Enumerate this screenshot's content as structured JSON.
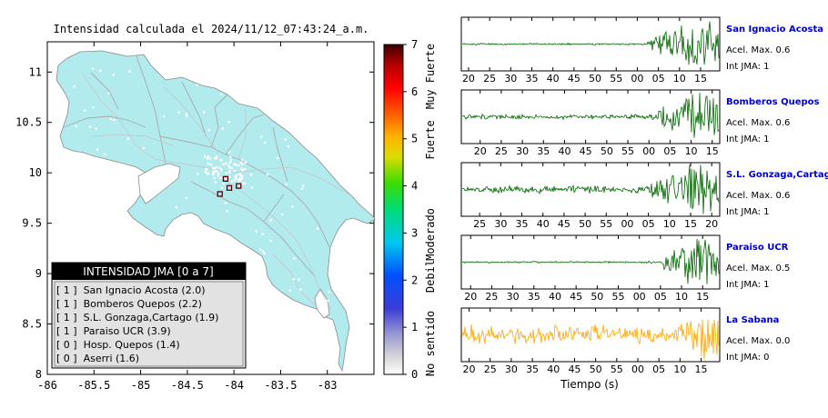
{
  "map": {
    "title": "Intensidad calculada el 2024/11/12_07:43:24_a.m.",
    "x_ticks": [
      "-86",
      "-85.5",
      "-85",
      "-84.5",
      "-84",
      "-83.5",
      "-83"
    ],
    "y_ticks": [
      "11",
      "10.5",
      "10",
      "9.5",
      "9",
      "8.5",
      "8"
    ],
    "xlim": [
      -86,
      -82.5
    ],
    "ylim": [
      8,
      11.3
    ],
    "land_color": "#b2ebee",
    "stations": [
      {
        "lon": -84.09,
        "lat": 9.94
      },
      {
        "lon": -83.95,
        "lat": 9.87
      },
      {
        "lon": -84.05,
        "lat": 9.85
      },
      {
        "lon": -84.15,
        "lat": 9.79
      }
    ]
  },
  "legend": {
    "title": "INTENSIDAD JMA [0 a 7]",
    "items": [
      "[ 1 ]  San Ignacio Acosta (2.0)",
      "[ 1 ]  Bomberos Quepos (2.2)",
      "[ 1 ]  S.L. Gonzaga,Cartago (1.9)",
      "[ 1 ]  Paraiso UCR (3.9)",
      "[ 0 ]  Hosp. Quepos (1.4)",
      "[ 0 ]  Aserri (1.6)"
    ]
  },
  "colorbar": {
    "ticks": [
      "7",
      "6",
      "5",
      "4",
      "3",
      "2",
      "1",
      "0"
    ],
    "labels": [
      "Muy Fuerte",
      "Fuerte",
      "Moderado",
      "Debil",
      "No sentido"
    ],
    "range": [
      0,
      7
    ]
  },
  "chart_data": {
    "type": "line",
    "xlabel": "Tiempo (s)",
    "series": [
      {
        "name": "San Ignacio Acosta",
        "accel_label": "Acel. Max. 0.6",
        "int_label": "Int JMA: 1",
        "color": "#006400",
        "ticks": [
          "20",
          "25",
          "30",
          "35",
          "40",
          "45",
          "50",
          "55",
          "00",
          "05",
          "10",
          "15"
        ],
        "first_tick_frac": 0.028,
        "onset_frac": 0.72,
        "noise": 0.03
      },
      {
        "name": "Bomberos Quepos",
        "accel_label": "Acel. Max. 0.6",
        "int_label": "Int JMA: 1",
        "color": "#006400",
        "ticks": [
          "20",
          "25",
          "30",
          "35",
          "40",
          "45",
          "50",
          "55",
          "00",
          "05",
          "10",
          "15"
        ],
        "first_tick_frac": 0.073,
        "onset_frac": 0.76,
        "noise": 0.08
      },
      {
        "name": "S.L. Gonzaga,Cartago",
        "accel_label": "Acel. Max. 0.6",
        "int_label": "Int JMA: 1",
        "color": "#006400",
        "ticks": [
          "25",
          "30",
          "35",
          "40",
          "45",
          "50",
          "55",
          "00",
          "05",
          "10",
          "15",
          "20"
        ],
        "first_tick_frac": 0.071,
        "onset_frac": 0.73,
        "noise": 0.12
      },
      {
        "name": "Paraiso UCR",
        "accel_label": "Acel. Max. 0.5",
        "int_label": "Int JMA: 1",
        "color": "#006400",
        "ticks": [
          "20",
          "25",
          "30",
          "35",
          "40",
          "45",
          "50",
          "55",
          "00",
          "05",
          "10",
          "15"
        ],
        "first_tick_frac": 0.036,
        "onset_frac": 0.78,
        "noise": 0.03
      },
      {
        "name": "La Sabana",
        "accel_label": "Acel. Max. 0.0",
        "int_label": "Int JMA: 0",
        "color": "#ffa500",
        "ticks": [
          "20",
          "25",
          "30",
          "35",
          "40",
          "45",
          "50",
          "55",
          "00",
          "05",
          "10",
          "15"
        ],
        "first_tick_frac": 0.03,
        "onset_frac": 0.81,
        "noise": 0.32
      }
    ]
  }
}
